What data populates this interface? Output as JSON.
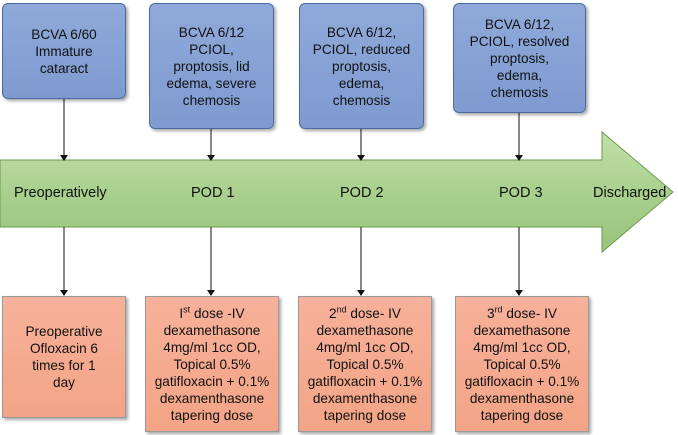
{
  "top_boxes": [
    {
      "lines": [
        "BCVA 6/60",
        "Immature",
        "cataract"
      ]
    },
    {
      "lines": [
        "BCVA 6/12",
        "PCIOL,",
        "proptosis, lid",
        "edema, severe",
        "chemosis"
      ]
    },
    {
      "lines": [
        "BCVA 6/12,",
        "PCIOL, reduced",
        "proptosis,",
        "edema,",
        "chemosis"
      ]
    },
    {
      "lines": [
        "BCVA 6/12,",
        "PCIOL, resolved",
        "proptosis,",
        "edema,",
        "chemosis"
      ]
    }
  ],
  "timeline": {
    "labels": [
      "Preoperatively",
      "POD 1",
      "POD 2",
      "POD 3",
      "Discharged"
    ]
  },
  "bottom_boxes": [
    {
      "lines": [
        "Preoperative",
        "Ofloxacin 6",
        "times for 1",
        "day"
      ]
    },
    {
      "ord_num": "I",
      "ord_sup": "st",
      "ord_rest": " dose -IV",
      "lines": [
        "dexamethasone",
        "4mg/ml 1cc OD,",
        "Topical 0.5%",
        "gatifloxacin + 0.1%",
        "dexamenthasone",
        "tapering dose"
      ]
    },
    {
      "ord_num": "2",
      "ord_sup": "nd",
      "ord_rest": " dose- IV",
      "lines": [
        "dexamethasone",
        "4mg/ml 1cc OD,",
        "Topical 0.5%",
        "gatifloxacin + 0.1%",
        "dexamenthasone",
        "tapering dose"
      ]
    },
    {
      "ord_num": "3",
      "ord_sup": "rd",
      "ord_rest": " dose- IV",
      "lines": [
        "dexamethasone",
        "4mg/ml 1cc OD,",
        "Topical 0.5%",
        "gatifloxacin + 0.1%",
        "dexamenthasone",
        "tapering dose"
      ]
    }
  ],
  "colors": {
    "arrow_fill": "#a9d08e",
    "arrow_stroke": "#6a9a4a",
    "top_box_fill": "#8fa9d9",
    "bottom_box_fill": "#f4a98d"
  }
}
